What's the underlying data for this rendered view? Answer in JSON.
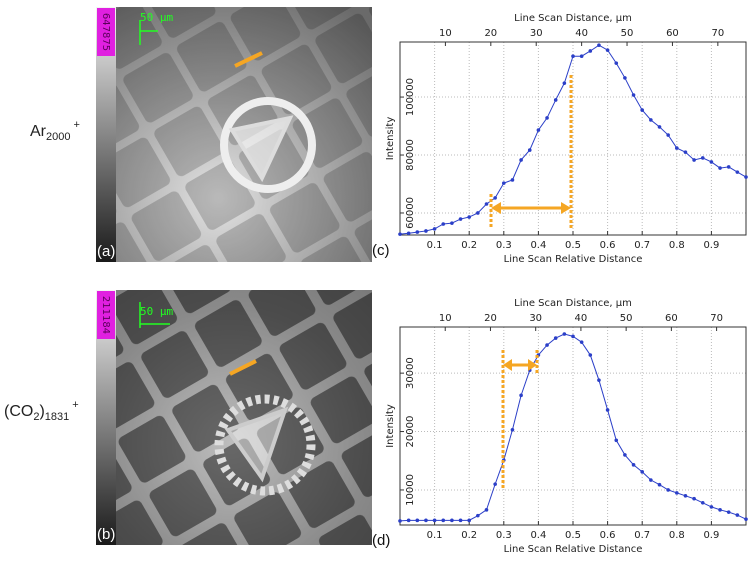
{
  "images": [
    {
      "row_label": {
        "base": "Ar",
        "sub": "2000",
        "sup": "+"
      },
      "panel_label": "(a)",
      "scale_bar": "50 µm",
      "colorbar_max": "647875"
    },
    {
      "row_label": {
        "base": "(CO",
        "sub1": "2",
        "mid": ")",
        "sub": "1831",
        "sup": "+"
      },
      "panel_label": "(b)",
      "scale_bar": "50 µm",
      "colorbar_max": "211184"
    }
  ],
  "chart_data": [
    {
      "type": "line",
      "panel_label": "(c)",
      "x_label": "Line Scan Relative Distance",
      "x2_label": "Line Scan Distance, µm",
      "y_label": "Intensity",
      "x": [
        0,
        0.025,
        0.05,
        0.075,
        0.1,
        0.125,
        0.15,
        0.175,
        0.2,
        0.225,
        0.25,
        0.275,
        0.3,
        0.325,
        0.35,
        0.375,
        0.4,
        0.425,
        0.45,
        0.475,
        0.5,
        0.525,
        0.55,
        0.575,
        0.6,
        0.625,
        0.65,
        0.675,
        0.7,
        0.725,
        0.75,
        0.775,
        0.8,
        0.825,
        0.85,
        0.875,
        0.9,
        0.925,
        0.95,
        0.975,
        1
      ],
      "series": [
        {
          "color": "#2b3fc8",
          "values": [
            52700,
            53000,
            53400,
            53800,
            54500,
            56200,
            56500,
            57900,
            58600,
            60000,
            63100,
            65200,
            70300,
            71400,
            78300,
            81700,
            88600,
            92800,
            99000,
            104800,
            114100,
            114100,
            115900,
            117900,
            116200,
            111700,
            106600,
            100700,
            95500,
            92100,
            89700,
            86900,
            82400,
            81000,
            78300,
            79000,
            77600,
            75500,
            75900,
            74100,
            72400
          ]
        }
      ],
      "xlim": [
        0,
        1
      ],
      "xticks": [
        0.1,
        0.2,
        0.3,
        0.4,
        0.5,
        0.6,
        0.7,
        0.8,
        0.9
      ],
      "x2lim": [
        0,
        76.2
      ],
      "x2ticks": [
        10,
        20,
        30,
        40,
        50,
        60,
        70
      ],
      "ylim": [
        52400,
        119000
      ],
      "yticks": [
        60000,
        80000,
        100000
      ],
      "grid": true
    },
    {
      "type": "line",
      "panel_label": "(d)",
      "x_label": "Line Scan Relative Distance",
      "x2_label": "Line Scan Distance, µm",
      "y_label": "Intensity",
      "x": [
        0,
        0.025,
        0.05,
        0.075,
        0.1,
        0.125,
        0.15,
        0.175,
        0.2,
        0.225,
        0.25,
        0.275,
        0.3,
        0.325,
        0.35,
        0.375,
        0.4,
        0.425,
        0.45,
        0.475,
        0.5,
        0.525,
        0.55,
        0.575,
        0.6,
        0.625,
        0.65,
        0.675,
        0.7,
        0.725,
        0.75,
        0.775,
        0.8,
        0.825,
        0.85,
        0.875,
        0.9,
        0.925,
        0.95,
        0.975,
        1
      ],
      "series": [
        {
          "color": "#2b3fc8",
          "values": [
            4700,
            4800,
            4800,
            4800,
            4800,
            4800,
            4800,
            4800,
            4800,
            5600,
            6600,
            11000,
            15100,
            20300,
            26200,
            30500,
            33100,
            34800,
            36000,
            36700,
            36300,
            35300,
            33100,
            28800,
            23700,
            18500,
            16000,
            14300,
            13100,
            11700,
            10900,
            10000,
            9500,
            9000,
            8500,
            7800,
            7100,
            6600,
            6200,
            5700,
            5000
          ]
        }
      ],
      "xlim": [
        0,
        1
      ],
      "xticks": [
        0.1,
        0.2,
        0.3,
        0.4,
        0.5,
        0.6,
        0.7,
        0.8,
        0.9
      ],
      "x2lim": [
        0,
        76.5
      ],
      "x2ticks": [
        10,
        20,
        30,
        40,
        50,
        60,
        70
      ],
      "ylim": [
        4000,
        37900
      ],
      "yticks": [
        10000,
        20000,
        30000
      ],
      "grid": true
    }
  ]
}
